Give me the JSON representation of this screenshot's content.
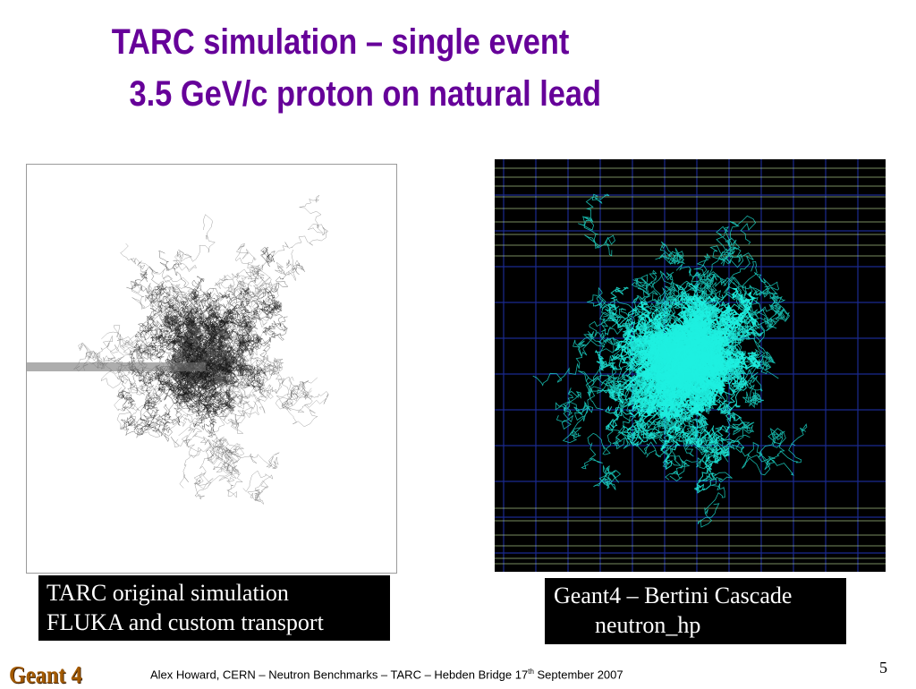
{
  "slide": {
    "title_line1": "TARC simulation – single event",
    "title_line2": "3.5 GeV/c proton on natural lead",
    "colors": {
      "title": "#660099",
      "left_tracks": "#111111",
      "right_tracks": "#1ef0e0",
      "right_background": "#000000",
      "right_grid_blue": "#1a2a90",
      "right_grid_lines": "#c8e8a0"
    }
  },
  "left_panel": {
    "caption_line1": "TARC original simulation",
    "caption_line2": "FLUKA and custom transport"
  },
  "right_panel": {
    "caption_line1": "Geant4 – Bertini Cascade",
    "caption_line2": "neutron_hp"
  },
  "footer": {
    "logo": "Geant 4",
    "text_before_sup": "Alex Howard, CERN – Neutron Benchmarks – TARC – Hebden Bridge 17",
    "sup": "th",
    "text_after_sup": " September 2007",
    "page_number": "5"
  }
}
